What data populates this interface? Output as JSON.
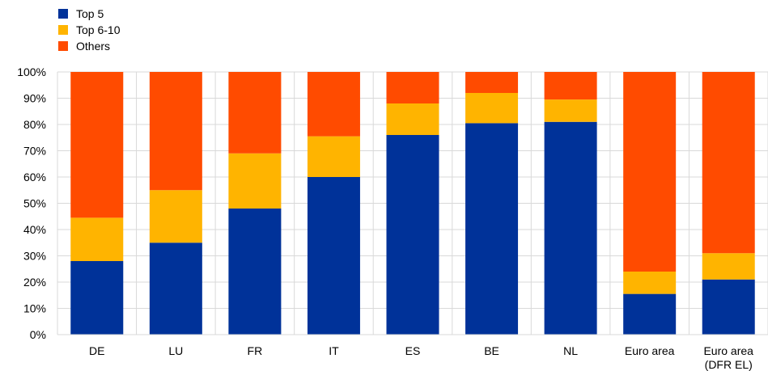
{
  "chart_data": {
    "type": "bar",
    "stacked": true,
    "percent_axis": true,
    "categories": [
      "DE",
      "LU",
      "FR",
      "IT",
      "ES",
      "BE",
      "NL",
      "Euro area",
      "Euro area\n(DFR EL)"
    ],
    "series": [
      {
        "name": "Top 5",
        "color": "#003299",
        "values": [
          28,
          35,
          48,
          60,
          76,
          80.5,
          81,
          15.5,
          21
        ]
      },
      {
        "name": "Top 6-10",
        "color": "#FFB400",
        "values": [
          16.5,
          20,
          21,
          15.5,
          12,
          11.5,
          8.5,
          8.5,
          10
        ]
      },
      {
        "name": "Others",
        "color": "#FF4B00",
        "values": [
          55.5,
          45,
          31,
          24.5,
          12,
          8,
          10.5,
          76,
          69
        ]
      }
    ],
    "ylim": [
      0,
      100
    ],
    "yticks": [
      0,
      10,
      20,
      30,
      40,
      50,
      60,
      70,
      80,
      90,
      100
    ],
    "ytick_labels": [
      "0%",
      "10%",
      "20%",
      "30%",
      "40%",
      "50%",
      "60%",
      "70%",
      "80%",
      "90%",
      "100%"
    ],
    "grid": true,
    "grid_color": "#d9d9d9",
    "legend_position": "top-left",
    "title": "",
    "xlabel": "",
    "ylabel": ""
  }
}
